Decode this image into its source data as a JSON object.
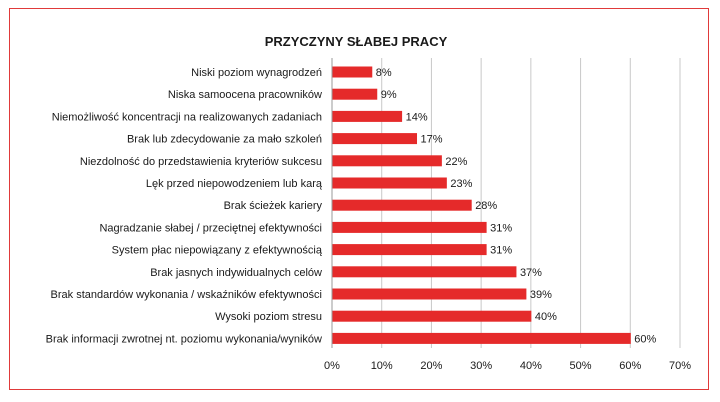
{
  "chart_data": {
    "type": "bar",
    "orientation": "horizontal",
    "title": "PRZYCZYNY SŁABEJ PRACY",
    "categories": [
      "Niski poziom wynagrodzeń",
      "Niska samoocena pracowników",
      "Niemożliwość koncentracji na realizowanych zadaniach",
      "Brak lub zdecydowanie za mało szkoleń",
      "Niezdolność do przedstawienia kryteriów sukcesu",
      "Lęk przed niepowodzeniem lub karą",
      "Brak ścieżek kariery",
      "Nagradzanie słabej / przeciętnej efektywności",
      "System płac niepowiązany z efektywnością",
      "Brak jasnych indywidualnych celów",
      "Brak standardów wykonania / wskaźników efektywności",
      "Wysoki poziom stresu",
      "Brak informacji zwrotnej nt. poziomu wykonania/wyników"
    ],
    "values": [
      8,
      9,
      14,
      17,
      22,
      23,
      28,
      31,
      31,
      37,
      39,
      40,
      60
    ],
    "data_labels": [
      "8%",
      "9%",
      "14%",
      "17%",
      "22%",
      "23%",
      "28%",
      "31%",
      "31%",
      "37%",
      "39%",
      "40%",
      "60%"
    ],
    "xlim": [
      0,
      70
    ],
    "xticks": [
      0,
      10,
      20,
      30,
      40,
      50,
      60,
      70
    ],
    "xtick_labels": [
      "0%",
      "10%",
      "20%",
      "30%",
      "40%",
      "50%",
      "60%",
      "70%"
    ],
    "grid": "vertical",
    "legend": "none",
    "colors": {
      "bar": "#e52a2a",
      "frame": "#e03a3a",
      "grid": "#c8c8c8"
    }
  }
}
